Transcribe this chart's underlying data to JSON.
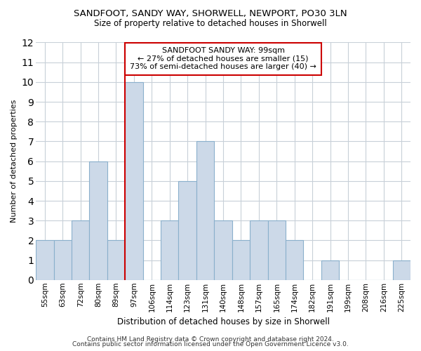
{
  "title": "SANDFOOT, SANDY WAY, SHORWELL, NEWPORT, PO30 3LN",
  "subtitle": "Size of property relative to detached houses in Shorwell",
  "xlabel": "Distribution of detached houses by size in Shorwell",
  "ylabel": "Number of detached properties",
  "bin_labels": [
    "55sqm",
    "63sqm",
    "72sqm",
    "80sqm",
    "89sqm",
    "97sqm",
    "106sqm",
    "114sqm",
    "123sqm",
    "131sqm",
    "140sqm",
    "148sqm",
    "157sqm",
    "165sqm",
    "174sqm",
    "182sqm",
    "191sqm",
    "199sqm",
    "208sqm",
    "216sqm",
    "225sqm"
  ],
  "bar_heights": [
    2,
    2,
    3,
    6,
    2,
    10,
    0,
    3,
    5,
    7,
    3,
    2,
    3,
    3,
    2,
    0,
    1,
    0,
    0,
    0,
    1
  ],
  "bar_color": "#ccd9e8",
  "bar_edgecolor": "#8ab0cc",
  "highlight_line_index": 5,
  "highlight_line_color": "#cc0000",
  "annotation_title": "SANDFOOT SANDY WAY: 99sqm",
  "annotation_line1": "← 27% of detached houses are smaller (15)",
  "annotation_line2": "73% of semi-detached houses are larger (40) →",
  "annotation_box_facecolor": "#ffffff",
  "annotation_box_edgecolor": "#cc0000",
  "ylim": [
    0,
    12
  ],
  "yticks": [
    0,
    1,
    2,
    3,
    4,
    5,
    6,
    7,
    8,
    9,
    10,
    11,
    12
  ],
  "footer1": "Contains HM Land Registry data © Crown copyright and database right 2024.",
  "footer2": "Contains public sector information licensed under the Open Government Licence v3.0.",
  "background_color": "#ffffff",
  "grid_color": "#c8d0d8",
  "title_fontsize": 9.5,
  "subtitle_fontsize": 8.5,
  "ylabel_fontsize": 8,
  "xlabel_fontsize": 8.5,
  "tick_fontsize": 7.5,
  "annotation_fontsize": 8,
  "footer_fontsize": 6.5
}
